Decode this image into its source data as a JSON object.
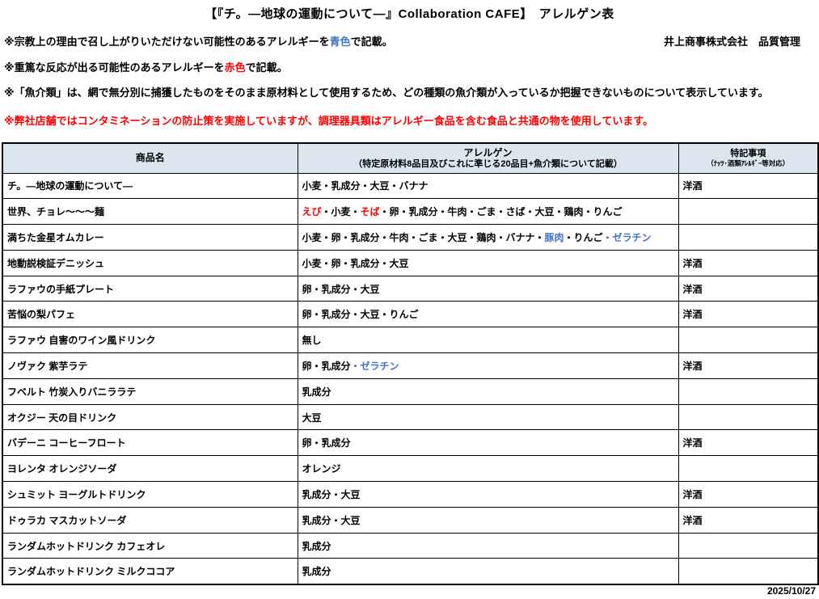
{
  "title": "【『チ。―地球の運動について―』Collaboration CAFE】　アレルゲン表",
  "company": "井上商事株式会社　品質管理",
  "colors": {
    "red": "#FF0000",
    "blue": "#4472C4",
    "header_bg": "#DCE6F1",
    "border": "#000000"
  },
  "notes": [
    {
      "segments": [
        {
          "t": "※宗教上の理由で召し上がりいただけない可能性のあるアレルギーを"
        },
        {
          "t": "青色",
          "c": "blue"
        },
        {
          "t": "で記載。"
        }
      ]
    },
    {
      "segments": [
        {
          "t": "※重篤な反応が出る可能性のあるアレルギーを"
        },
        {
          "t": "赤色",
          "c": "red"
        },
        {
          "t": "で記載。"
        }
      ]
    },
    {
      "segments": [
        {
          "t": "※「魚介類」は、網で無分別に捕獲したものをそのまま原材料として使用するため、どの種類の魚介類が入っているか把握できないものについて表示しています。"
        }
      ]
    },
    {
      "segments": [
        {
          "t": "※弊社店舗ではコンタミネーションの防止策を実施していますが、調理器具類はアレルギー食品を含む食品と共通の物を使用しています。",
          "c": "red"
        }
      ]
    }
  ],
  "table": {
    "headers": {
      "product": "商品名",
      "allergen_line1": "アレルゲン",
      "allergen_line2": "（特定原材料8品目及びこれに準じる20品目+魚介類について記載）",
      "notes_line1": "特記事項",
      "notes_line2": "（ﾅｯﾂ･酒類ｱﾚﾙｷﾞｰ等対応）"
    },
    "rows": [
      {
        "product": "チ。―地球の運動について―",
        "allergens": [
          {
            "t": "小麦・乳成分・大豆・バナナ"
          }
        ],
        "note": "洋酒"
      },
      {
        "product": "世界、チョレ～～～麺",
        "allergens": [
          {
            "t": "えび",
            "c": "red"
          },
          {
            "t": "・小麦・"
          },
          {
            "t": "そば",
            "c": "red"
          },
          {
            "t": "・卵・乳成分・牛肉・ごま・さば・大豆・鶏肉・りんご"
          }
        ],
        "note": ""
      },
      {
        "product": "満ちた金星オムカレー",
        "allergens": [
          {
            "t": "小麦・卵・乳成分・牛肉・ごま・大豆・鶏肉・バナナ・"
          },
          {
            "t": "豚肉",
            "c": "blue"
          },
          {
            "t": "・りんご"
          },
          {
            "t": "・ゼラチン",
            "c": "blue"
          }
        ],
        "note": ""
      },
      {
        "product": "地動説検証デニッシュ",
        "allergens": [
          {
            "t": "小麦・卵・乳成分・大豆"
          }
        ],
        "note": "洋酒"
      },
      {
        "product": "ラファウの手紙プレート",
        "allergens": [
          {
            "t": "卵・乳成分・大豆"
          }
        ],
        "note": "洋酒"
      },
      {
        "product": "苦悩の梨パフェ",
        "allergens": [
          {
            "t": "卵・乳成分・大豆・りんご"
          }
        ],
        "note": "洋酒"
      },
      {
        "product": "ラファウ 自害のワイン風ドリンク",
        "allergens": [
          {
            "t": "無し"
          }
        ],
        "note": ""
      },
      {
        "product": "ノヴァク 紫芋ラテ",
        "allergens": [
          {
            "t": "卵・乳成分"
          },
          {
            "t": "・ゼラチン",
            "c": "blue"
          }
        ],
        "note": "洋酒"
      },
      {
        "product": "フベルト 竹炭入りバニララテ",
        "allergens": [
          {
            "t": "乳成分"
          }
        ],
        "note": ""
      },
      {
        "product": "オクジー 天の目ドリンク",
        "allergens": [
          {
            "t": "大豆"
          }
        ],
        "note": ""
      },
      {
        "product": "バデーニ コーヒーフロート",
        "allergens": [
          {
            "t": "卵・乳成分"
          }
        ],
        "note": "洋酒"
      },
      {
        "product": "ヨレンタ オレンジソーダ",
        "allergens": [
          {
            "t": "オレンジ"
          }
        ],
        "note": ""
      },
      {
        "product": "シュミット ヨーグルトドリンク",
        "allergens": [
          {
            "t": "乳成分・大豆"
          }
        ],
        "note": "洋酒"
      },
      {
        "product": "ドゥラカ マスカットソーダ",
        "allergens": [
          {
            "t": "乳成分・大豆"
          }
        ],
        "note": "洋酒"
      },
      {
        "product": "ランダムホットドリンク カフェオレ",
        "allergens": [
          {
            "t": "乳成分"
          }
        ],
        "note": ""
      },
      {
        "product": "ランダムホットドリンク ミルクココア",
        "allergens": [
          {
            "t": "乳成分"
          }
        ],
        "note": ""
      }
    ]
  },
  "footer": {
    "date": "2025/10/27"
  }
}
